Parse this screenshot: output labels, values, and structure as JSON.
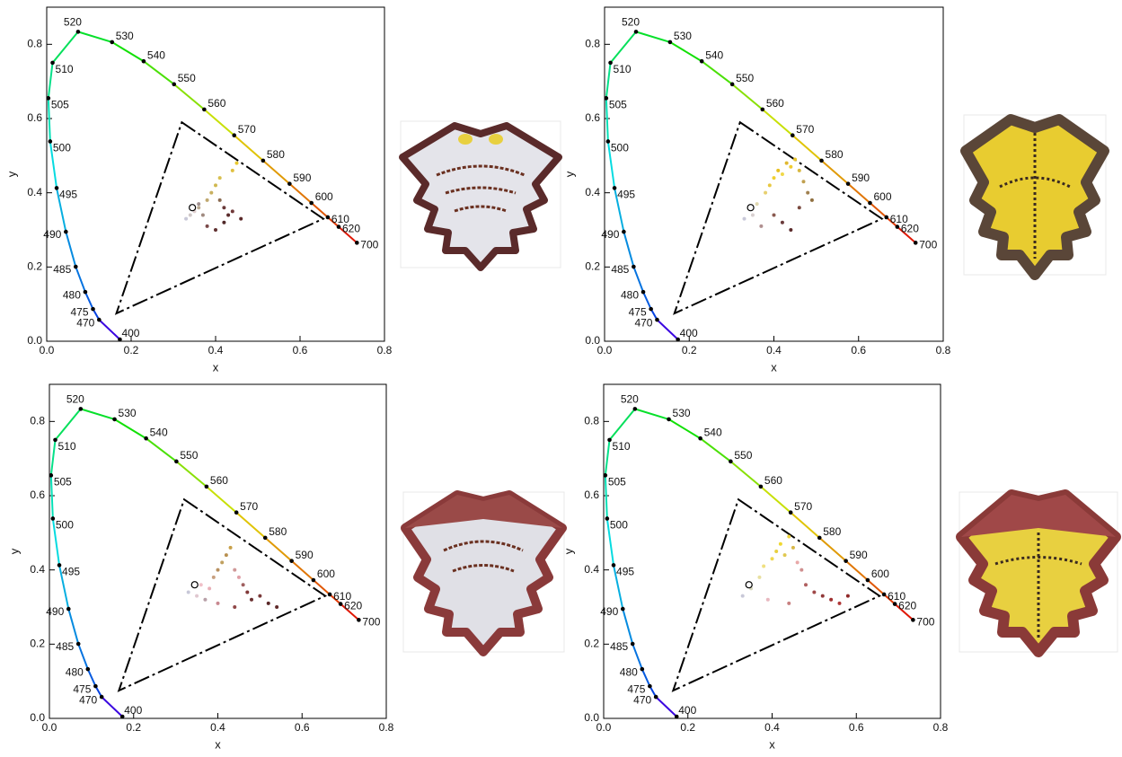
{
  "chart_data": [
    {
      "type": "scatter",
      "xlabel": "x",
      "ylabel": "y",
      "xlim": [
        0,
        0.8
      ],
      "ylim": [
        0,
        0.9
      ],
      "xticks": [
        {
          "value": 0,
          "label": "0.0"
        },
        0.2,
        0.4,
        0.6,
        0.8
      ],
      "yticks": [
        {
          "value": 0,
          "label": "0.0"
        },
        0.2,
        0.4,
        0.6,
        0.8
      ],
      "locus": {
        "wavelengths": [
          400,
          470,
          475,
          480,
          485,
          490,
          495,
          500,
          505,
          510,
          520,
          530,
          540,
          550,
          560,
          570,
          580,
          590,
          600,
          610,
          620,
          700
        ],
        "x": [
          0.1733,
          0.1241,
          0.1096,
          0.0913,
          0.0687,
          0.0454,
          0.0235,
          0.0082,
          0.0039,
          0.0139,
          0.0743,
          0.1547,
          0.2296,
          0.3016,
          0.3731,
          0.4441,
          0.5125,
          0.5752,
          0.627,
          0.6658,
          0.6915,
          0.7347
        ],
        "y": [
          0.0048,
          0.0578,
          0.0868,
          0.1327,
          0.2007,
          0.295,
          0.4127,
          0.5384,
          0.6548,
          0.7502,
          0.8338,
          0.8059,
          0.7543,
          0.6923,
          0.6245,
          0.5547,
          0.4866,
          0.4242,
          0.3725,
          0.334,
          0.3083,
          0.2653
        ]
      },
      "gamut": {
        "x": [
          0.32,
          0.655,
          0.165
        ],
        "y": [
          0.59,
          0.33,
          0.075
        ]
      },
      "white_point": {
        "x": 0.345,
        "y": 0.36
      },
      "points": {
        "x": [
          0.33,
          0.34,
          0.35,
          0.36,
          0.37,
          0.38,
          0.39,
          0.4,
          0.41,
          0.42,
          0.43,
          0.44,
          0.45,
          0.38,
          0.4,
          0.42,
          0.36,
          0.44,
          0.46,
          0.41
        ],
        "y": [
          0.33,
          0.34,
          0.35,
          0.36,
          0.34,
          0.38,
          0.4,
          0.42,
          0.44,
          0.36,
          0.34,
          0.46,
          0.48,
          0.31,
          0.3,
          0.32,
          0.37,
          0.35,
          0.33,
          0.38
        ],
        "colors": [
          "#c8c8d8",
          "#d0c8c8",
          "#e0d0d0",
          "#b8a890",
          "#a08a80",
          "#c0a870",
          "#c8b060",
          "#d0b850",
          "#d8c050",
          "#6a3a3a",
          "#5a2a2a",
          "#e0c040",
          "#e8c830",
          "#7a4a4a",
          "#603030",
          "#502828",
          "#a09090",
          "#703838",
          "#5a2828",
          "#8a6a50"
        ]
      }
    },
    {
      "type": "scatter",
      "xlabel": "x",
      "ylabel": "y",
      "xlim": [
        0,
        0.8
      ],
      "ylim": [
        0,
        0.9
      ],
      "xticks": [
        {
          "value": 0,
          "label": "0.0"
        },
        0.2,
        0.4,
        0.6,
        0.8
      ],
      "yticks": [
        {
          "value": 0,
          "label": "0.0"
        },
        0.2,
        0.4,
        0.6,
        0.8
      ],
      "locus": {
        "wavelengths": [
          400,
          470,
          475,
          480,
          485,
          490,
          495,
          500,
          505,
          510,
          520,
          530,
          540,
          550,
          560,
          570,
          580,
          590,
          600,
          610,
          620,
          700
        ],
        "x": [
          0.1733,
          0.1241,
          0.1096,
          0.0913,
          0.0687,
          0.0454,
          0.0235,
          0.0082,
          0.0039,
          0.0139,
          0.0743,
          0.1547,
          0.2296,
          0.3016,
          0.3731,
          0.4441,
          0.5125,
          0.5752,
          0.627,
          0.6658,
          0.6915,
          0.7347
        ],
        "y": [
          0.0048,
          0.0578,
          0.0868,
          0.1327,
          0.2007,
          0.295,
          0.4127,
          0.5384,
          0.6548,
          0.7502,
          0.8338,
          0.8059,
          0.7543,
          0.6923,
          0.6245,
          0.5547,
          0.4866,
          0.4242,
          0.3725,
          0.334,
          0.3083,
          0.2653
        ]
      },
      "gamut": {
        "x": [
          0.32,
          0.655,
          0.165
        ],
        "y": [
          0.59,
          0.33,
          0.075
        ]
      },
      "white_point": {
        "x": 0.345,
        "y": 0.36
      },
      "points": {
        "x": [
          0.33,
          0.35,
          0.36,
          0.38,
          0.39,
          0.4,
          0.41,
          0.42,
          0.43,
          0.44,
          0.45,
          0.46,
          0.47,
          0.48,
          0.4,
          0.42,
          0.44,
          0.46,
          0.37,
          0.49
        ],
        "y": [
          0.33,
          0.34,
          0.37,
          0.4,
          0.42,
          0.44,
          0.46,
          0.45,
          0.48,
          0.47,
          0.49,
          0.46,
          0.43,
          0.4,
          0.34,
          0.32,
          0.3,
          0.36,
          0.31,
          0.38
        ],
        "colors": [
          "#c8c8d8",
          "#d8d0d0",
          "#e0d8b0",
          "#e8d070",
          "#e8c840",
          "#f0d030",
          "#e8c020",
          "#f0d848",
          "#e0b830",
          "#f0cc30",
          "#e8c428",
          "#d8b840",
          "#c0a050",
          "#a08050",
          "#8a5a50",
          "#6a3a3a",
          "#5a2a2a",
          "#7a4a40",
          "#b09090",
          "#907040"
        ]
      }
    },
    {
      "type": "scatter",
      "xlabel": "x",
      "ylabel": "y",
      "xlim": [
        0,
        0.8
      ],
      "ylim": [
        0,
        0.9
      ],
      "xticks": [
        {
          "value": 0,
          "label": "0.0"
        },
        0.2,
        0.4,
        0.6,
        0.8
      ],
      "yticks": [
        {
          "value": 0,
          "label": "0.0"
        },
        0.2,
        0.4,
        0.6,
        0.8
      ],
      "locus": {
        "wavelengths": [
          400,
          470,
          475,
          480,
          485,
          490,
          495,
          500,
          505,
          510,
          520,
          530,
          540,
          550,
          560,
          570,
          580,
          590,
          600,
          610,
          620,
          700
        ],
        "x": [
          0.1733,
          0.1241,
          0.1096,
          0.0913,
          0.0687,
          0.0454,
          0.0235,
          0.0082,
          0.0039,
          0.0139,
          0.0743,
          0.1547,
          0.2296,
          0.3016,
          0.3731,
          0.4441,
          0.5125,
          0.5752,
          0.627,
          0.6658,
          0.6915,
          0.7347
        ],
        "y": [
          0.0048,
          0.0578,
          0.0868,
          0.1327,
          0.2007,
          0.295,
          0.4127,
          0.5384,
          0.6548,
          0.7502,
          0.8338,
          0.8059,
          0.7543,
          0.6923,
          0.6245,
          0.5547,
          0.4866,
          0.4242,
          0.3725,
          0.334,
          0.3083,
          0.2653
        ]
      },
      "gamut": {
        "x": [
          0.32,
          0.655,
          0.165
        ],
        "y": [
          0.59,
          0.33,
          0.075
        ]
      },
      "white_point": {
        "x": 0.345,
        "y": 0.36
      },
      "points": {
        "x": [
          0.33,
          0.35,
          0.36,
          0.38,
          0.39,
          0.4,
          0.41,
          0.42,
          0.43,
          0.44,
          0.45,
          0.46,
          0.47,
          0.48,
          0.5,
          0.52,
          0.44,
          0.4,
          0.37,
          0.54
        ],
        "y": [
          0.34,
          0.33,
          0.36,
          0.35,
          0.38,
          0.4,
          0.42,
          0.44,
          0.46,
          0.4,
          0.38,
          0.36,
          0.34,
          0.32,
          0.33,
          0.31,
          0.3,
          0.31,
          0.32,
          0.3
        ],
        "colors": [
          "#c8c8d8",
          "#e0c8d0",
          "#f0c0c8",
          "#e8b0b8",
          "#c8a080",
          "#b89060",
          "#c0a060",
          "#b89050",
          "#c8a048",
          "#d09898",
          "#e0a0a8",
          "#a06060",
          "#803838",
          "#6a3030",
          "#7a3a3a",
          "#5a2828",
          "#904848",
          "#c88890",
          "#b8a0a8",
          "#602a2a"
        ]
      }
    },
    {
      "type": "scatter",
      "xlabel": "x",
      "ylabel": "y",
      "xlim": [
        0,
        0.8
      ],
      "ylim": [
        0,
        0.9
      ],
      "xticks": [
        {
          "value": 0,
          "label": "0.0"
        },
        0.2,
        0.4,
        0.6,
        0.8
      ],
      "yticks": [
        {
          "value": 0,
          "label": "0.0"
        },
        0.2,
        0.4,
        0.6,
        0.8
      ],
      "locus": {
        "wavelengths": [
          400,
          470,
          475,
          480,
          485,
          490,
          495,
          500,
          505,
          510,
          520,
          530,
          540,
          550,
          560,
          570,
          580,
          590,
          600,
          610,
          620,
          700
        ],
        "x": [
          0.1733,
          0.1241,
          0.1096,
          0.0913,
          0.0687,
          0.0454,
          0.0235,
          0.0082,
          0.0039,
          0.0139,
          0.0743,
          0.1547,
          0.2296,
          0.3016,
          0.3731,
          0.4441,
          0.5125,
          0.5752,
          0.627,
          0.6658,
          0.6915,
          0.7347
        ],
        "y": [
          0.0048,
          0.0578,
          0.0868,
          0.1327,
          0.2007,
          0.295,
          0.4127,
          0.5384,
          0.6548,
          0.7502,
          0.8338,
          0.8059,
          0.7543,
          0.6923,
          0.6245,
          0.5547,
          0.4866,
          0.4242,
          0.3725,
          0.334,
          0.3083,
          0.2653
        ]
      },
      "gamut": {
        "x": [
          0.32,
          0.655,
          0.165
        ],
        "y": [
          0.59,
          0.33,
          0.075
        ]
      },
      "white_point": {
        "x": 0.345,
        "y": 0.36
      },
      "points": {
        "x": [
          0.33,
          0.35,
          0.37,
          0.38,
          0.4,
          0.41,
          0.42,
          0.43,
          0.44,
          0.45,
          0.46,
          0.47,
          0.48,
          0.5,
          0.52,
          0.54,
          0.56,
          0.58,
          0.39,
          0.44
        ],
        "y": [
          0.33,
          0.35,
          0.38,
          0.41,
          0.43,
          0.45,
          0.47,
          0.44,
          0.49,
          0.46,
          0.42,
          0.4,
          0.36,
          0.34,
          0.33,
          0.32,
          0.31,
          0.33,
          0.32,
          0.31
        ],
        "colors": [
          "#c8c8d8",
          "#d8d8c0",
          "#e8e0a0",
          "#f0e080",
          "#f0d850",
          "#e8d040",
          "#f0d830",
          "#e0c850",
          "#f0d440",
          "#d8b848",
          "#e8a8a8",
          "#d09090",
          "#b06060",
          "#a04848",
          "#903838",
          "#a03030",
          "#b03838",
          "#902828",
          "#e8b8c0",
          "#c88080"
        ]
      }
    }
  ]
}
